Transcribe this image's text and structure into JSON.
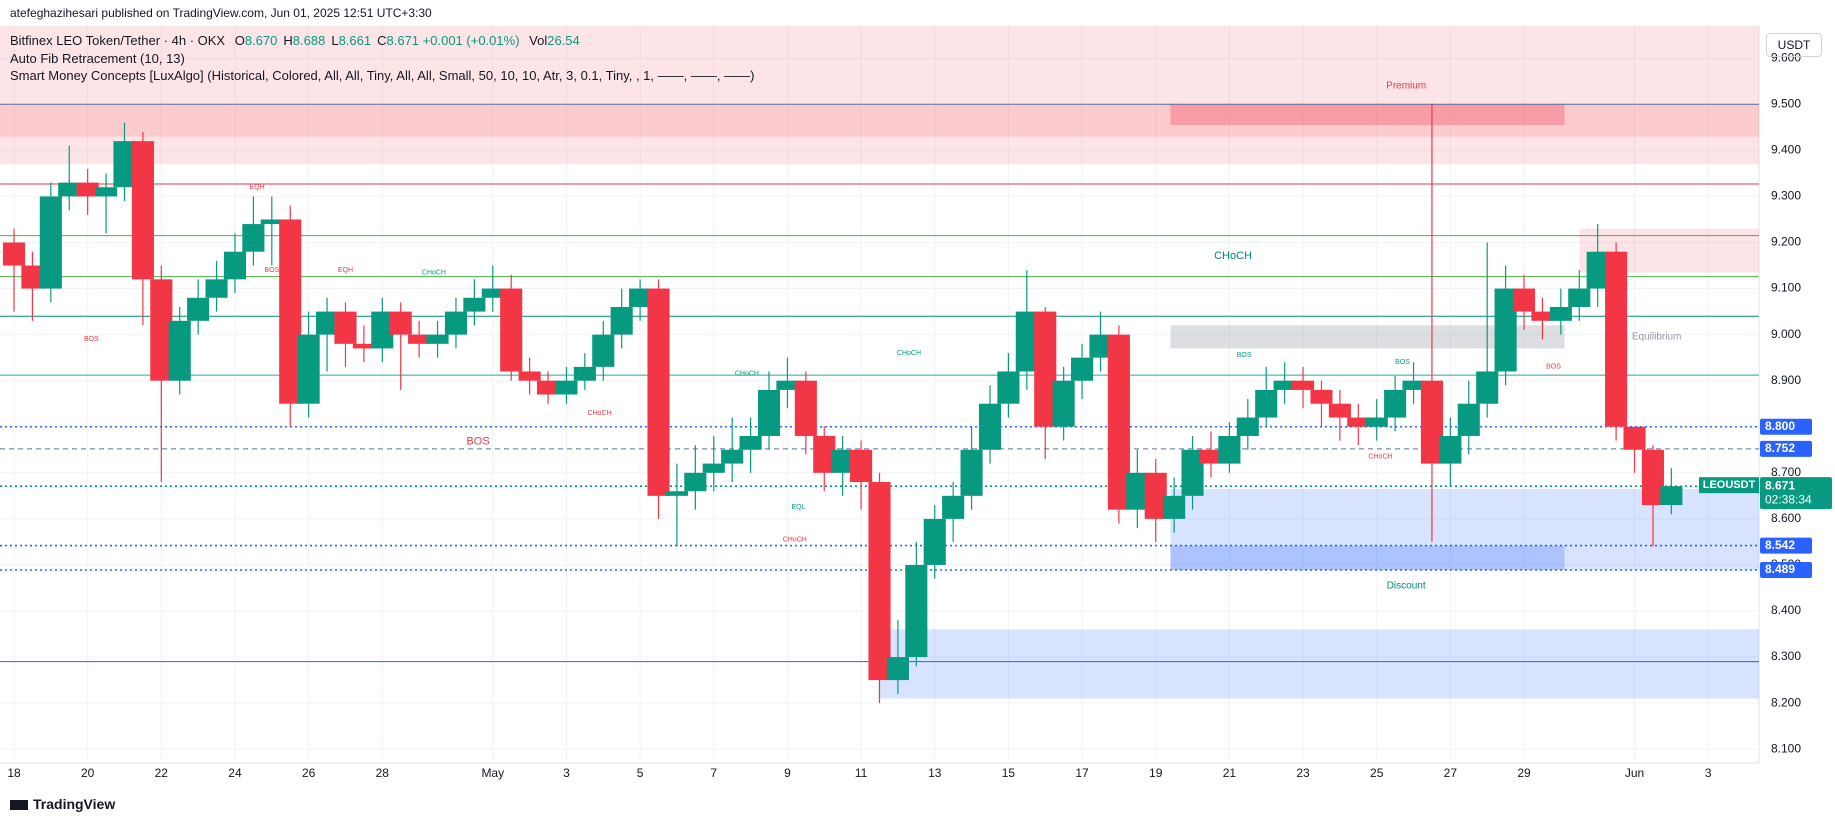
{
  "header": {
    "publisher": "atefeghazihesari published on TradingView.com, Jun 01, 2025 12:51 UTC+3:30",
    "symbol": "Bitfinex LEO Token/Tether · 4h · OKX",
    "ohlc": [
      {
        "k": "O",
        "v": "8.670"
      },
      {
        "k": "H",
        "v": "8.688"
      },
      {
        "k": "L",
        "v": "8.661"
      },
      {
        "k": "C",
        "v": "8.671"
      }
    ],
    "change": "+0.001 (+0.01%)",
    "vol_key": "Vol",
    "vol": "26.54",
    "indicators": [
      "Auto Fib Retracement (10, 13)",
      "Smart Money Concepts [LuxAlgo] (Historical, Colored, All, All, Tiny, All, All, Small, 50, 10, 10, Atr, 3, 0.1, Tiny, , 1, ——, ——, ——)"
    ],
    "currency": "USDT",
    "brand": "TradingView"
  },
  "chart_data": {
    "type": "candlestick",
    "up_color": "#089981",
    "down_color": "#f23645",
    "xlim": [
      -0.38,
      47.38
    ],
    "ylim": [
      8.07,
      9.67
    ],
    "xticks": [
      {
        "value": 0,
        "label": "18"
      },
      {
        "value": 2,
        "label": "20"
      },
      {
        "value": 4,
        "label": "22"
      },
      {
        "value": 6,
        "label": "24"
      },
      {
        "value": 8,
        "label": "26"
      },
      {
        "value": 10,
        "label": "28"
      },
      {
        "value": 13,
        "label": "May"
      },
      {
        "value": 15,
        "label": "3"
      },
      {
        "value": 17,
        "label": "5"
      },
      {
        "value": 19,
        "label": "7"
      },
      {
        "value": 21,
        "label": "9"
      },
      {
        "value": 23,
        "label": "11"
      },
      {
        "value": 25,
        "label": "13"
      },
      {
        "value": 27,
        "label": "15"
      },
      {
        "value": 29,
        "label": "17"
      },
      {
        "value": 31,
        "label": "19"
      },
      {
        "value": 33,
        "label": "21"
      },
      {
        "value": 35,
        "label": "23"
      },
      {
        "value": 37,
        "label": "25"
      },
      {
        "value": 39,
        "label": "27"
      },
      {
        "value": 41,
        "label": "29"
      },
      {
        "value": 44,
        "label": "Jun"
      },
      {
        "value": 46,
        "label": "3"
      }
    ],
    "yticks": [
      {
        "value": 8.1,
        "label": "8.100"
      },
      {
        "value": 8.2,
        "label": "8.200"
      },
      {
        "value": 8.3,
        "label": "8.300"
      },
      {
        "value": 8.4,
        "label": "8.400"
      },
      {
        "value": 8.5,
        "label": "8.500"
      },
      {
        "value": 8.6,
        "label": "8.600"
      },
      {
        "value": 8.7,
        "label": "8.700"
      },
      {
        "value": 8.8,
        "label": "8.800"
      },
      {
        "value": 8.9,
        "label": "8.900"
      },
      {
        "value": 9.0,
        "label": "9.000"
      },
      {
        "value": 9.1,
        "label": "9.100"
      },
      {
        "value": 9.2,
        "label": "9.200"
      },
      {
        "value": 9.3,
        "label": "9.300"
      },
      {
        "value": 9.4,
        "label": "9.400"
      },
      {
        "value": 9.5,
        "label": "9.500"
      },
      {
        "value": 9.6,
        "label": "9.600"
      }
    ],
    "grid": true,
    "x": [
      0,
      0.5,
      1,
      1.5,
      2,
      2.5,
      3,
      3.5,
      4,
      4.5,
      5,
      5.5,
      6,
      6.5,
      7,
      7.5,
      8,
      8.5,
      9,
      9.5,
      10,
      10.5,
      11,
      11.5,
      12,
      12.5,
      13,
      13.5,
      14,
      14.5,
      15,
      15.5,
      16,
      16.5,
      17,
      17.5,
      18,
      18.5,
      19,
      19.5,
      20,
      20.5,
      21,
      21.5,
      22,
      22.5,
      23,
      23.5,
      24,
      24.5,
      25,
      25.5,
      26,
      26.5,
      27,
      27.5,
      28,
      28.5,
      29,
      29.5,
      30,
      30.5,
      31,
      31.5,
      32,
      32.5,
      33,
      33.5,
      34,
      34.5,
      35,
      35.5,
      36,
      36.5,
      37,
      37.5,
      38,
      38.5,
      39,
      39.5,
      40,
      40.5,
      41,
      41.5,
      42,
      42.5,
      43,
      43.5,
      44,
      44.5,
      45
    ],
    "ohlc": [
      [
        9.2,
        9.23,
        9.05,
        9.15
      ],
      [
        9.15,
        9.18,
        9.03,
        9.1
      ],
      [
        9.1,
        9.33,
        9.07,
        9.3
      ],
      [
        9.3,
        9.41,
        9.27,
        9.33
      ],
      [
        9.33,
        9.36,
        9.26,
        9.3
      ],
      [
        9.3,
        9.35,
        9.22,
        9.32
      ],
      [
        9.32,
        9.46,
        9.29,
        9.42
      ],
      [
        9.42,
        9.44,
        9.02,
        9.12
      ],
      [
        9.12,
        9.15,
        8.68,
        8.9
      ],
      [
        8.9,
        9.06,
        8.87,
        9.03
      ],
      [
        9.03,
        9.12,
        9.0,
        9.08
      ],
      [
        9.08,
        9.16,
        9.05,
        9.12
      ],
      [
        9.12,
        9.22,
        9.09,
        9.18
      ],
      [
        9.18,
        9.3,
        9.15,
        9.24
      ],
      [
        9.24,
        9.3,
        9.15,
        9.25
      ],
      [
        9.25,
        9.28,
        8.8,
        8.85
      ],
      [
        8.85,
        9.05,
        8.82,
        9.0
      ],
      [
        9.0,
        9.08,
        8.92,
        9.05
      ],
      [
        9.05,
        9.07,
        8.93,
        8.98
      ],
      [
        8.98,
        9.02,
        8.94,
        8.97
      ],
      [
        8.97,
        9.08,
        8.94,
        9.05
      ],
      [
        9.05,
        9.07,
        8.88,
        9.0
      ],
      [
        9.0,
        9.03,
        8.95,
        8.98
      ],
      [
        8.98,
        9.03,
        8.95,
        9.0
      ],
      [
        9.0,
        9.08,
        8.97,
        9.05
      ],
      [
        9.05,
        9.12,
        9.02,
        9.08
      ],
      [
        9.08,
        9.15,
        9.05,
        9.1
      ],
      [
        9.1,
        9.13,
        8.9,
        8.92
      ],
      [
        8.92,
        8.95,
        8.87,
        8.9
      ],
      [
        8.9,
        8.92,
        8.85,
        8.87
      ],
      [
        8.87,
        8.93,
        8.85,
        8.9
      ],
      [
        8.9,
        8.96,
        8.88,
        8.93
      ],
      [
        8.93,
        9.03,
        8.9,
        9.0
      ],
      [
        9.0,
        9.1,
        8.97,
        9.06
      ],
      [
        9.06,
        9.12,
        9.03,
        9.1
      ],
      [
        9.1,
        9.12,
        8.6,
        8.65
      ],
      [
        8.65,
        8.72,
        8.54,
        8.66
      ],
      [
        8.66,
        8.76,
        8.62,
        8.7
      ],
      [
        8.7,
        8.78,
        8.66,
        8.72
      ],
      [
        8.72,
        8.82,
        8.68,
        8.75
      ],
      [
        8.75,
        8.82,
        8.7,
        8.78
      ],
      [
        8.78,
        8.92,
        8.75,
        8.88
      ],
      [
        8.88,
        8.95,
        8.84,
        8.9
      ],
      [
        8.9,
        8.92,
        8.74,
        8.78
      ],
      [
        8.78,
        8.8,
        8.66,
        8.7
      ],
      [
        8.7,
        8.78,
        8.65,
        8.75
      ],
      [
        8.75,
        8.77,
        8.62,
        8.68
      ],
      [
        8.68,
        8.7,
        8.2,
        8.25
      ],
      [
        8.25,
        8.38,
        8.22,
        8.3
      ],
      [
        8.3,
        8.55,
        8.28,
        8.5
      ],
      [
        8.5,
        8.63,
        8.47,
        8.6
      ],
      [
        8.6,
        8.68,
        8.55,
        8.65
      ],
      [
        8.65,
        8.8,
        8.62,
        8.75
      ],
      [
        8.75,
        8.89,
        8.72,
        8.85
      ],
      [
        8.85,
        8.96,
        8.82,
        8.92
      ],
      [
        8.92,
        9.14,
        8.88,
        9.05
      ],
      [
        9.05,
        9.06,
        8.73,
        8.8
      ],
      [
        8.8,
        8.93,
        8.77,
        8.9
      ],
      [
        8.9,
        8.98,
        8.86,
        8.95
      ],
      [
        8.95,
        9.05,
        8.92,
        9.0
      ],
      [
        9.0,
        9.02,
        8.59,
        8.62
      ],
      [
        8.62,
        8.75,
        8.58,
        8.7
      ],
      [
        8.7,
        8.73,
        8.55,
        8.6
      ],
      [
        8.6,
        8.69,
        8.57,
        8.65
      ],
      [
        8.65,
        8.78,
        8.62,
        8.75
      ],
      [
        8.75,
        8.79,
        8.69,
        8.72
      ],
      [
        8.72,
        8.81,
        8.7,
        8.78
      ],
      [
        8.78,
        8.86,
        8.75,
        8.82
      ],
      [
        8.82,
        8.93,
        8.8,
        8.88
      ],
      [
        8.88,
        8.94,
        8.85,
        8.9
      ],
      [
        8.9,
        8.93,
        8.84,
        8.88
      ],
      [
        8.88,
        8.9,
        8.8,
        8.85
      ],
      [
        8.85,
        8.88,
        8.77,
        8.82
      ],
      [
        8.82,
        8.85,
        8.76,
        8.8
      ],
      [
        8.8,
        8.86,
        8.77,
        8.82
      ],
      [
        8.82,
        8.91,
        8.79,
        8.88
      ],
      [
        8.88,
        8.94,
        8.85,
        8.9
      ],
      [
        8.9,
        9.5,
        8.55,
        8.72
      ],
      [
        8.72,
        8.82,
        8.67,
        8.78
      ],
      [
        8.78,
        8.9,
        8.74,
        8.85
      ],
      [
        8.85,
        9.2,
        8.82,
        8.92
      ],
      [
        8.92,
        9.15,
        8.89,
        9.1
      ],
      [
        9.1,
        9.13,
        9.01,
        9.05
      ],
      [
        9.05,
        9.08,
        8.99,
        9.03
      ],
      [
        9.03,
        9.1,
        9.0,
        9.06
      ],
      [
        9.06,
        9.14,
        9.03,
        9.1
      ],
      [
        9.1,
        9.24,
        9.06,
        9.18
      ],
      [
        9.18,
        9.2,
        8.77,
        8.8
      ],
      [
        8.8,
        8.8,
        8.7,
        8.75
      ],
      [
        8.75,
        8.76,
        8.54,
        8.63
      ],
      [
        8.63,
        8.71,
        8.61,
        8.671
      ]
    ],
    "zones": [
      {
        "x": [
          -0.38,
          47.38
        ],
        "y": [
          9.37,
          9.67
        ],
        "color": "rgba(242,54,69,0.13)"
      },
      {
        "x": [
          -0.38,
          47.38
        ],
        "y": [
          9.43,
          9.5
        ],
        "color": "rgba(242,54,69,0.15)"
      },
      {
        "x": [
          31.4,
          42.1
        ],
        "y": [
          9.455,
          9.5
        ],
        "color": "rgba(242,54,69,0.3)"
      },
      {
        "x": [
          31.4,
          42.1
        ],
        "y": [
          8.97,
          9.02
        ],
        "color": "rgba(120,123,134,0.25)"
      },
      {
        "x": [
          31.4,
          47.38
        ],
        "y": [
          8.489,
          8.665
        ],
        "color": "rgba(41,98,255,0.18)"
      },
      {
        "x": [
          31.4,
          42.1
        ],
        "y": [
          8.489,
          8.542
        ],
        "color": "rgba(41,98,255,0.25)"
      },
      {
        "x": [
          23.47,
          47.38
        ],
        "y": [
          8.21,
          8.36
        ],
        "color": "rgba(41,98,255,0.18)"
      },
      {
        "x": [
          42.5,
          47.38
        ],
        "y": [
          9.135,
          9.23
        ],
        "color": "rgba(242,54,69,0.13)"
      }
    ],
    "levels": [
      {
        "value": 9.5,
        "color": "#5b6fa0",
        "style": "solid"
      },
      {
        "value": 9.327,
        "color": "#f23645",
        "style": "solid"
      },
      {
        "value": 9.215,
        "color": "#4caf50",
        "style": "solid"
      },
      {
        "value": 9.126,
        "color": "#4caf50",
        "style": "solid"
      },
      {
        "value": 9.04,
        "color": "#00897b",
        "style": "solid"
      },
      {
        "value": 8.912,
        "color": "#26a69a",
        "style": "solid"
      },
      {
        "value": 8.8,
        "label": "8.800",
        "color": "#2962ff",
        "style": "dotted"
      },
      {
        "value": 8.752,
        "label": "8.752",
        "color": "#5b6fa0",
        "style": "dashed"
      },
      {
        "value": 8.671,
        "label": "8.671",
        "color": "#089981",
        "style": "dotted"
      },
      {
        "value": 8.542,
        "label": "8.542",
        "color": "#2962ff",
        "style": "dotted"
      },
      {
        "value": 8.489,
        "label": "8.489",
        "color": "#2962ff",
        "style": "dotted"
      },
      {
        "value": 8.29,
        "color": "#2962ff",
        "style": "solid"
      }
    ],
    "last_symbol": "LEOUSDT",
    "countdown": "02:38:34",
    "annotations": [
      {
        "text": "Premium",
        "x": 37.8,
        "y": 9.54,
        "color": "#f23645",
        "size": 10
      },
      {
        "text": "Equilibrium",
        "x": 44.6,
        "y": 8.995,
        "color": "#9598a1",
        "size": 10
      },
      {
        "text": "Discount",
        "x": 37.8,
        "y": 8.455,
        "color": "#00897b",
        "size": 10
      },
      {
        "text": "CHoCH",
        "x": 33.1,
        "y": 9.17,
        "color": "#00897b",
        "size": 11
      },
      {
        "text": "BOS",
        "x": 12.6,
        "y": 8.768,
        "color": "#f23645",
        "size": 11
      },
      {
        "text": "EQH",
        "x": 6.6,
        "y": 9.32,
        "color": "#f23645",
        "size": 7
      },
      {
        "text": "BOS",
        "x": 7.0,
        "y": 9.14,
        "color": "#f23645",
        "size": 7
      },
      {
        "text": "BOS",
        "x": 2.1,
        "y": 8.99,
        "color": "#f23645",
        "size": 7
      },
      {
        "text": "EQH",
        "x": 9.0,
        "y": 9.14,
        "color": "#f23645",
        "size": 7
      },
      {
        "text": "CHoCH",
        "x": 11.4,
        "y": 9.135,
        "color": "#089981",
        "size": 7
      },
      {
        "text": "CHoCH",
        "x": 24.3,
        "y": 8.96,
        "color": "#089981",
        "size": 7
      },
      {
        "text": "CHoCH",
        "x": 19.9,
        "y": 8.915,
        "color": "#089981",
        "size": 7
      },
      {
        "text": "CHoCH",
        "x": 15.9,
        "y": 8.83,
        "color": "#f23645",
        "size": 7
      },
      {
        "text": "EQL",
        "x": 21.3,
        "y": 8.625,
        "color": "#089981",
        "size": 7
      },
      {
        "text": "CHoCH",
        "x": 21.2,
        "y": 8.555,
        "color": "#f23645",
        "size": 7
      },
      {
        "text": "BOS",
        "x": 33.4,
        "y": 8.955,
        "color": "#089981",
        "size": 7
      },
      {
        "text": "BOS",
        "x": 37.7,
        "y": 8.94,
        "color": "#089981",
        "size": 7
      },
      {
        "text": "CHoCH",
        "x": 37.1,
        "y": 8.735,
        "color": "#f23645",
        "size": 7
      },
      {
        "text": "BOS",
        "x": 41.8,
        "y": 8.93,
        "color": "#f23645",
        "size": 7
      }
    ]
  }
}
